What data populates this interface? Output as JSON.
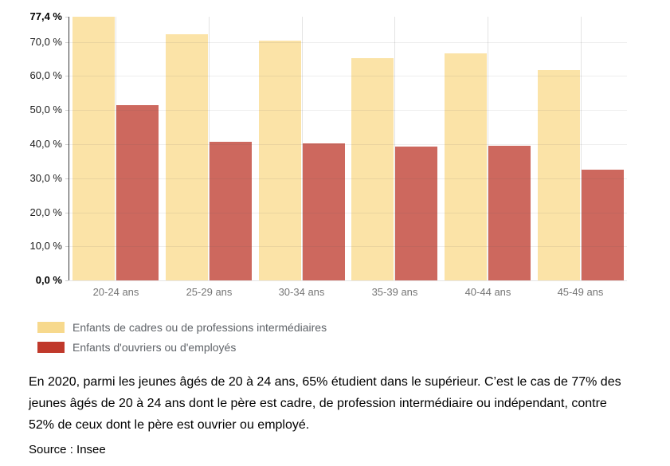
{
  "chart_data": {
    "type": "bar",
    "title": "",
    "xlabel": "",
    "ylabel": "",
    "grid": true,
    "legend_position": "bottom-left",
    "ylim": [
      0,
      77.4
    ],
    "categories": [
      "20-24 ans",
      "25-29 ans",
      "30-34 ans",
      "35-39 ans",
      "40-44 ans",
      "45-49 ans"
    ],
    "series": [
      {
        "name": "Enfants de cadres ou de professions intermédiaires",
        "bar_color": "#FBE3A7",
        "legend_color": "#F7D98D",
        "values": [
          77.4,
          72.3,
          70.3,
          65.3,
          66.7,
          61.8
        ]
      },
      {
        "name": "Enfants d'ouvriers ou d'employés",
        "bar_color": "#CD685E",
        "legend_color": "#C0392B",
        "values": [
          51.5,
          40.8,
          40.2,
          39.3,
          39.6,
          32.5
        ]
      }
    ],
    "y_ticks": [
      {
        "label": "77,4 %",
        "value": 77.4,
        "bold": true
      },
      {
        "label": "70,0 %",
        "value": 70,
        "bold": false
      },
      {
        "label": "60,0 %",
        "value": 60,
        "bold": false
      },
      {
        "label": "50,0 %",
        "value": 50,
        "bold": false
      },
      {
        "label": "40,0 %",
        "value": 40,
        "bold": false
      },
      {
        "label": "30,0 %",
        "value": 30,
        "bold": false
      },
      {
        "label": "20,0 %",
        "value": 20,
        "bold": false
      },
      {
        "label": "10,0 %",
        "value": 10,
        "bold": false
      },
      {
        "label": "0,0 %",
        "value": 0,
        "bold": true
      }
    ]
  },
  "caption": {
    "paragraph": "En 2020, parmi les jeunes âgés de 20 à 24 ans, 65% étudient dans le supérieur. C’est le cas de 77% des jeunes âgés de 20 à 24 ans dont le père est cadre, de profession intermédiaire ou indépendant, contre 52% de ceux dont le père est ouvrier ou employé.",
    "source": "Source : Insee"
  }
}
